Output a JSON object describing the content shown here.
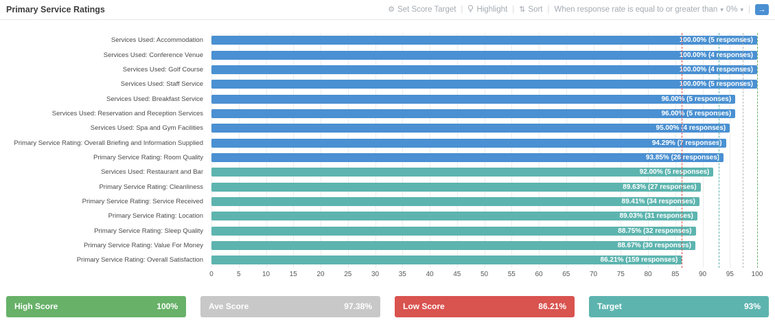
{
  "header": {
    "title": "Primary Service Ratings",
    "set_score_target_label": "Set Score Target",
    "highlight_label": "Highlight",
    "sort_label": "Sort",
    "filter_text": "When response rate is equal to or greater than",
    "filter_value": "0%",
    "gear_glyph": "⚙",
    "sort_glyph": "⇅",
    "caret_glyph": "▾",
    "go_arrow_glyph": "→",
    "separator": "|"
  },
  "colors": {
    "accent_blue": "#4a90d2",
    "bar_blue": "#4a90d2",
    "bar_teal": "#5db4af",
    "grid": "#ececec"
  },
  "chart_data": {
    "type": "bar",
    "orientation": "horizontal",
    "title": "Primary Service Ratings",
    "xlim": [
      0,
      100
    ],
    "x_ticks": [
      0,
      5,
      10,
      15,
      20,
      25,
      30,
      35,
      40,
      45,
      50,
      55,
      60,
      65,
      70,
      75,
      80,
      85,
      90,
      95,
      100
    ],
    "grid": true,
    "legend": false,
    "categories": [
      "Services Used: Accommodation",
      "Services Used: Conference Venue",
      "Services Used: Golf Course",
      "Services Used: Staff Service",
      "Services Used: Breakfast Service",
      "Services Used: Reservation and Reception Services",
      "Services Used: Spa and Gym Facilities",
      "Primary Service Rating: Overall Briefing and Information Supplied",
      "Primary Service Rating: Room Quality",
      "Services Used: Restaurant and Bar",
      "Primary Service Rating: Cleanliness",
      "Primary Service Rating: Service Received",
      "Primary Service Rating: Location",
      "Primary Service Rating: Sleep Quality",
      "Primary Service Rating: Value For Money",
      "Primary Service Rating: Overall Satisfaction"
    ],
    "values": [
      100.0,
      100.0,
      100.0,
      100.0,
      96.0,
      96.0,
      95.0,
      94.29,
      93.85,
      92.0,
      89.63,
      89.41,
      89.03,
      88.75,
      88.67,
      86.21
    ],
    "responses": [
      5,
      4,
      4,
      5,
      5,
      5,
      4,
      7,
      26,
      5,
      27,
      34,
      31,
      32,
      30,
      159
    ],
    "value_labels": [
      "100.00% (5 responses)",
      "100.00% (4 responses)",
      "100.00% (4 responses)",
      "100.00% (5 responses)",
      "96.00% (5 responses)",
      "96.00% (5 responses)",
      "95.00% (4 responses)",
      "94.29% (7 responses)",
      "93.85% (26 responses)",
      "92.00% (5 responses)",
      "89.63% (27 responses)",
      "89.41% (34 responses)",
      "89.03% (31 responses)",
      "88.75% (32 responses)",
      "88.67% (30 responses)",
      "86.21% (159 responses)"
    ],
    "bar_colors": [
      "#4a90d2",
      "#4a90d2",
      "#4a90d2",
      "#4a90d2",
      "#4a90d2",
      "#4a90d2",
      "#4a90d2",
      "#4a90d2",
      "#4a90d2",
      "#5db4af",
      "#5db4af",
      "#5db4af",
      "#5db4af",
      "#5db4af",
      "#5db4af",
      "#5db4af"
    ],
    "reference_lines": [
      {
        "label": "Low Score",
        "value": 86.21,
        "color": "#d9534f"
      },
      {
        "label": "Target",
        "value": 93,
        "color": "#5db4af"
      },
      {
        "label": "Ave Score",
        "value": 97.38,
        "color": "#b5b5b5"
      },
      {
        "label": "High Score",
        "value": 100,
        "color": "#67b168"
      }
    ]
  },
  "stats": [
    {
      "label": "High Score",
      "value": "100%",
      "color": "#67b168"
    },
    {
      "label": "Ave Score",
      "value": "97.38%",
      "color": "#c8c8c8"
    },
    {
      "label": "Low Score",
      "value": "86.21%",
      "color": "#d9534f"
    },
    {
      "label": "Target",
      "value": "93%",
      "color": "#5db4af"
    }
  ]
}
